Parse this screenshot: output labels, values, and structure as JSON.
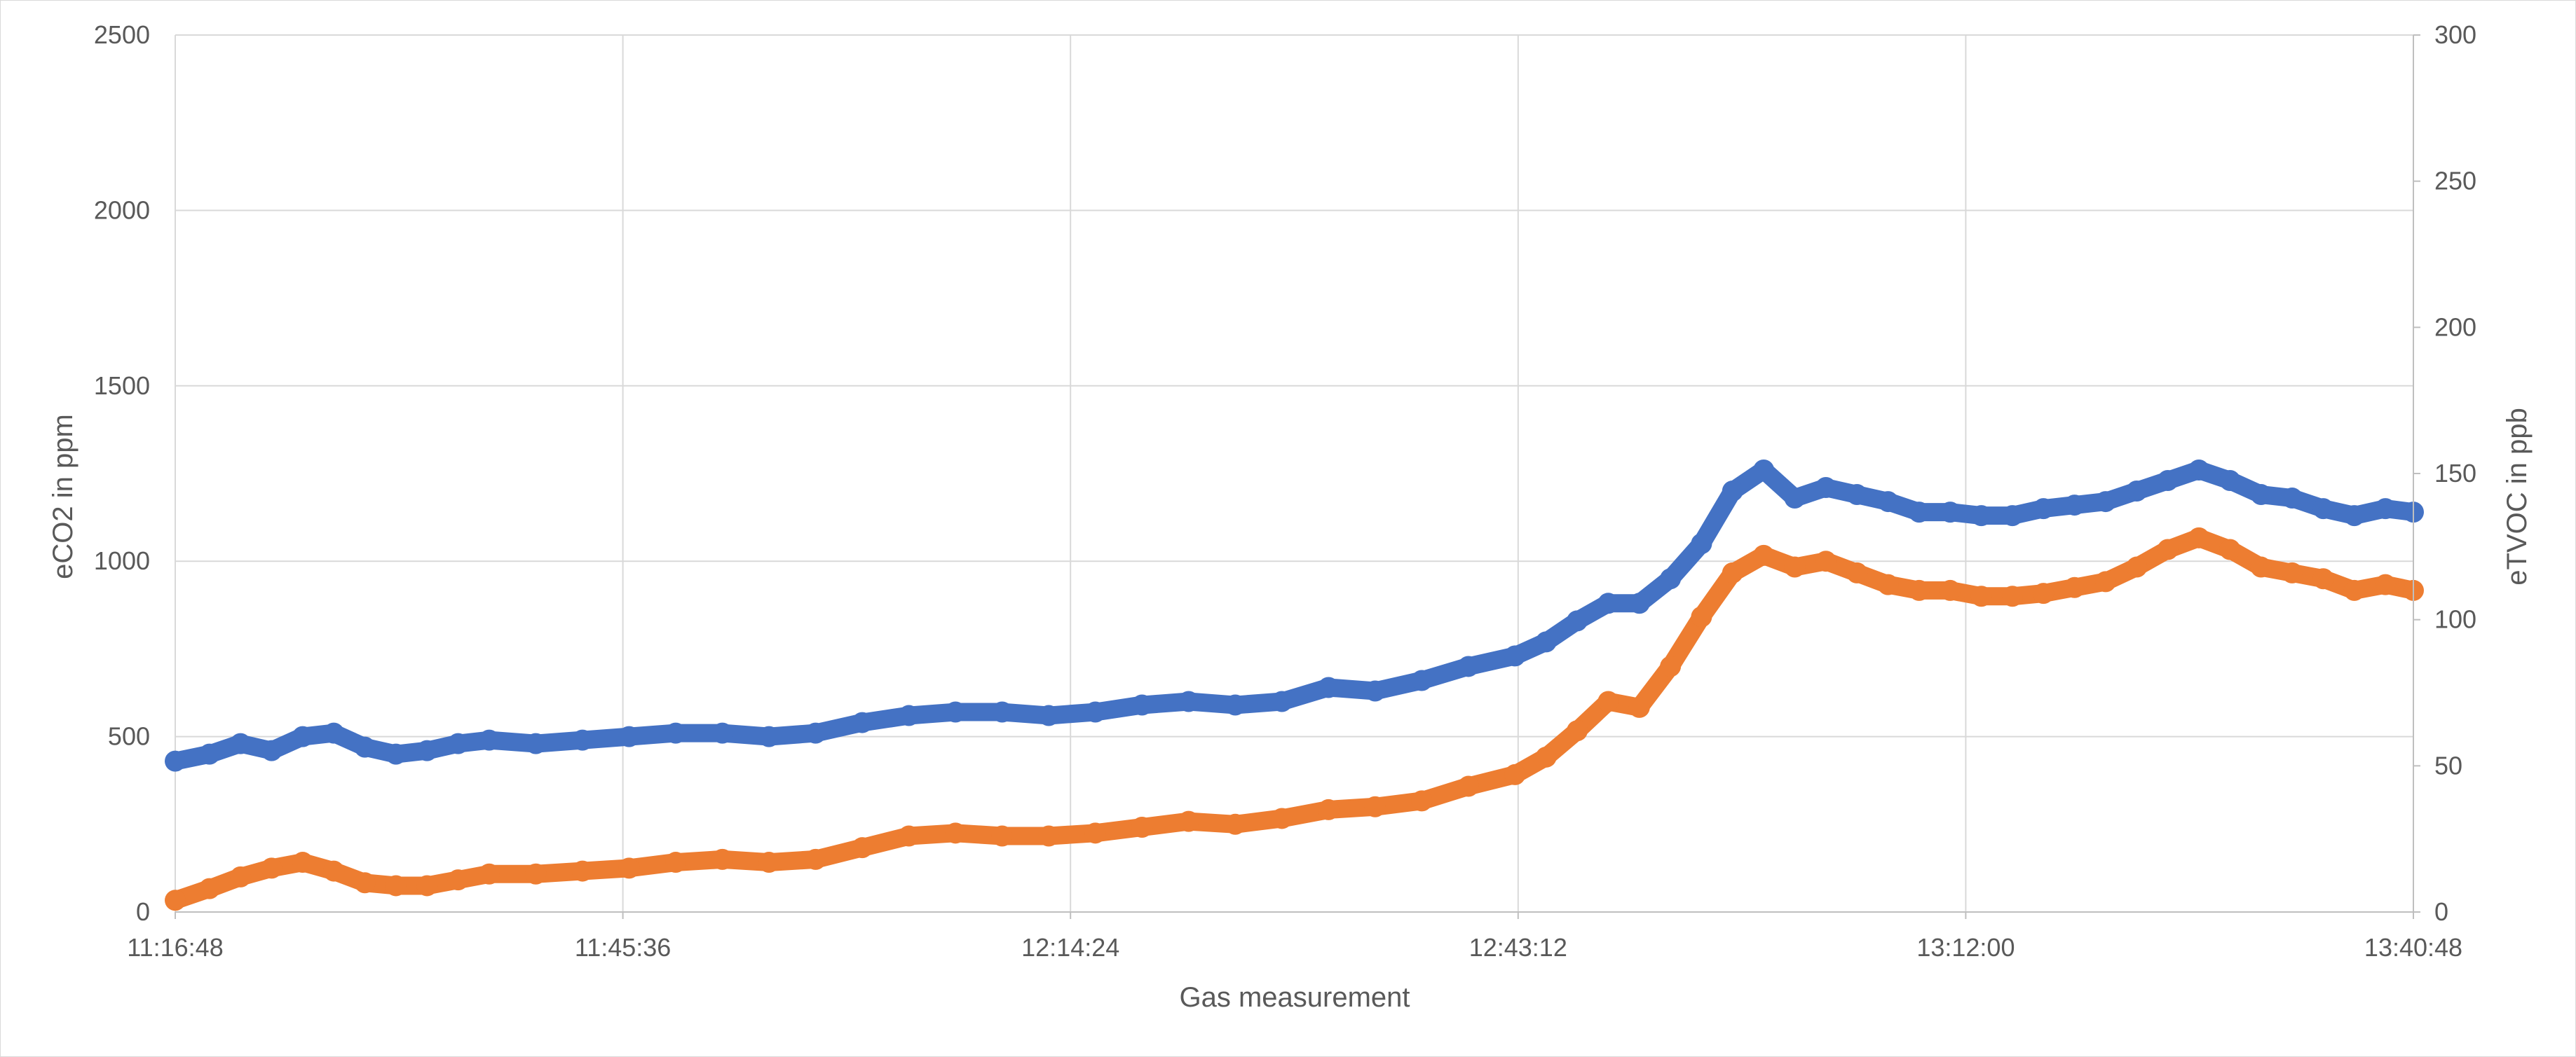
{
  "chart_data": {
    "type": "scatter",
    "xlabel": "Gas measurement",
    "ylabel_left": "eCO2 in ppm",
    "ylabel_right": "eTVOC in ppb",
    "x_ticks": [
      "11:16:48",
      "11:45:36",
      "12:14:24",
      "12:43:12",
      "13:12:00",
      "13:40:48"
    ],
    "x_range": [
      "11:16:48",
      "13:40:48"
    ],
    "y_left_ticks": [
      "0",
      "500",
      "1000",
      "1500",
      "2000",
      "2500"
    ],
    "y_left_range": [
      0,
      2500
    ],
    "y_right_ticks": [
      "0",
      "50",
      "100",
      "150",
      "200",
      "250",
      "300"
    ],
    "y_right_range": [
      0,
      300
    ],
    "grid": true,
    "series": [
      {
        "axis": "left",
        "color": "#4472C4",
        "x": [
          "11:16:48",
          "11:19:00",
          "11:21:00",
          "11:23:00",
          "11:25:00",
          "11:27:00",
          "11:29:00",
          "11:31:00",
          "11:33:00",
          "11:35:00",
          "11:37:00",
          "11:40:00",
          "11:43:00",
          "11:46:00",
          "11:49:00",
          "11:52:00",
          "11:55:00",
          "11:58:00",
          "12:01:00",
          "12:04:00",
          "12:07:00",
          "12:10:00",
          "12:13:00",
          "12:16:00",
          "12:19:00",
          "12:22:00",
          "12:25:00",
          "12:28:00",
          "12:31:00",
          "12:34:00",
          "12:37:00",
          "12:40:00",
          "12:43:00",
          "12:45:00",
          "12:47:00",
          "12:49:00",
          "12:51:00",
          "12:53:00",
          "12:55:00",
          "12:57:00",
          "12:59:00",
          "13:01:00",
          "13:03:00",
          "13:05:00",
          "13:07:00",
          "13:09:00",
          "13:11:00",
          "13:13:00",
          "13:15:00",
          "13:17:00",
          "13:19:00",
          "13:21:00",
          "13:23:00",
          "13:25:00",
          "13:27:00",
          "13:29:00",
          "13:31:00",
          "13:33:00",
          "13:35:00",
          "13:37:00",
          "13:39:00",
          "13:40:48"
        ],
        "y": [
          430,
          450,
          480,
          460,
          500,
          510,
          470,
          450,
          460,
          480,
          490,
          480,
          490,
          500,
          510,
          510,
          500,
          510,
          540,
          560,
          570,
          570,
          560,
          570,
          590,
          600,
          590,
          600,
          640,
          630,
          660,
          700,
          730,
          770,
          830,
          880,
          880,
          950,
          1050,
          1200,
          1260,
          1180,
          1210,
          1190,
          1170,
          1140,
          1140,
          1130,
          1130,
          1150,
          1160,
          1170,
          1200,
          1230,
          1260,
          1230,
          1190,
          1180,
          1150,
          1130,
          1150,
          1140
        ]
      },
      {
        "axis": "right",
        "color": "#ED7D31",
        "x": [
          "11:16:48",
          "11:19:00",
          "11:21:00",
          "11:23:00",
          "11:25:00",
          "11:27:00",
          "11:29:00",
          "11:31:00",
          "11:33:00",
          "11:35:00",
          "11:37:00",
          "11:40:00",
          "11:43:00",
          "11:46:00",
          "11:49:00",
          "11:52:00",
          "11:55:00",
          "11:58:00",
          "12:01:00",
          "12:04:00",
          "12:07:00",
          "12:10:00",
          "12:13:00",
          "12:16:00",
          "12:19:00",
          "12:22:00",
          "12:25:00",
          "12:28:00",
          "12:31:00",
          "12:34:00",
          "12:37:00",
          "12:40:00",
          "12:43:00",
          "12:45:00",
          "12:47:00",
          "12:49:00",
          "12:51:00",
          "12:53:00",
          "12:55:00",
          "12:57:00",
          "12:59:00",
          "13:01:00",
          "13:03:00",
          "13:05:00",
          "13:07:00",
          "13:09:00",
          "13:11:00",
          "13:13:00",
          "13:15:00",
          "13:17:00",
          "13:19:00",
          "13:21:00",
          "13:23:00",
          "13:25:00",
          "13:27:00",
          "13:29:00",
          "13:31:00",
          "13:33:00",
          "13:35:00",
          "13:37:00",
          "13:39:00",
          "13:40:48"
        ],
        "y": [
          4,
          8,
          12,
          15,
          17,
          14,
          10,
          9,
          9,
          11,
          13,
          13,
          14,
          15,
          17,
          18,
          17,
          18,
          22,
          26,
          27,
          26,
          26,
          27,
          29,
          31,
          30,
          32,
          35,
          36,
          38,
          43,
          47,
          53,
          62,
          72,
          70,
          84,
          101,
          116,
          122,
          118,
          120,
          116,
          112,
          110,
          110,
          108,
          108,
          109,
          111,
          113,
          118,
          124,
          128,
          124,
          118,
          116,
          114,
          110,
          112,
          110
        ]
      }
    ]
  }
}
